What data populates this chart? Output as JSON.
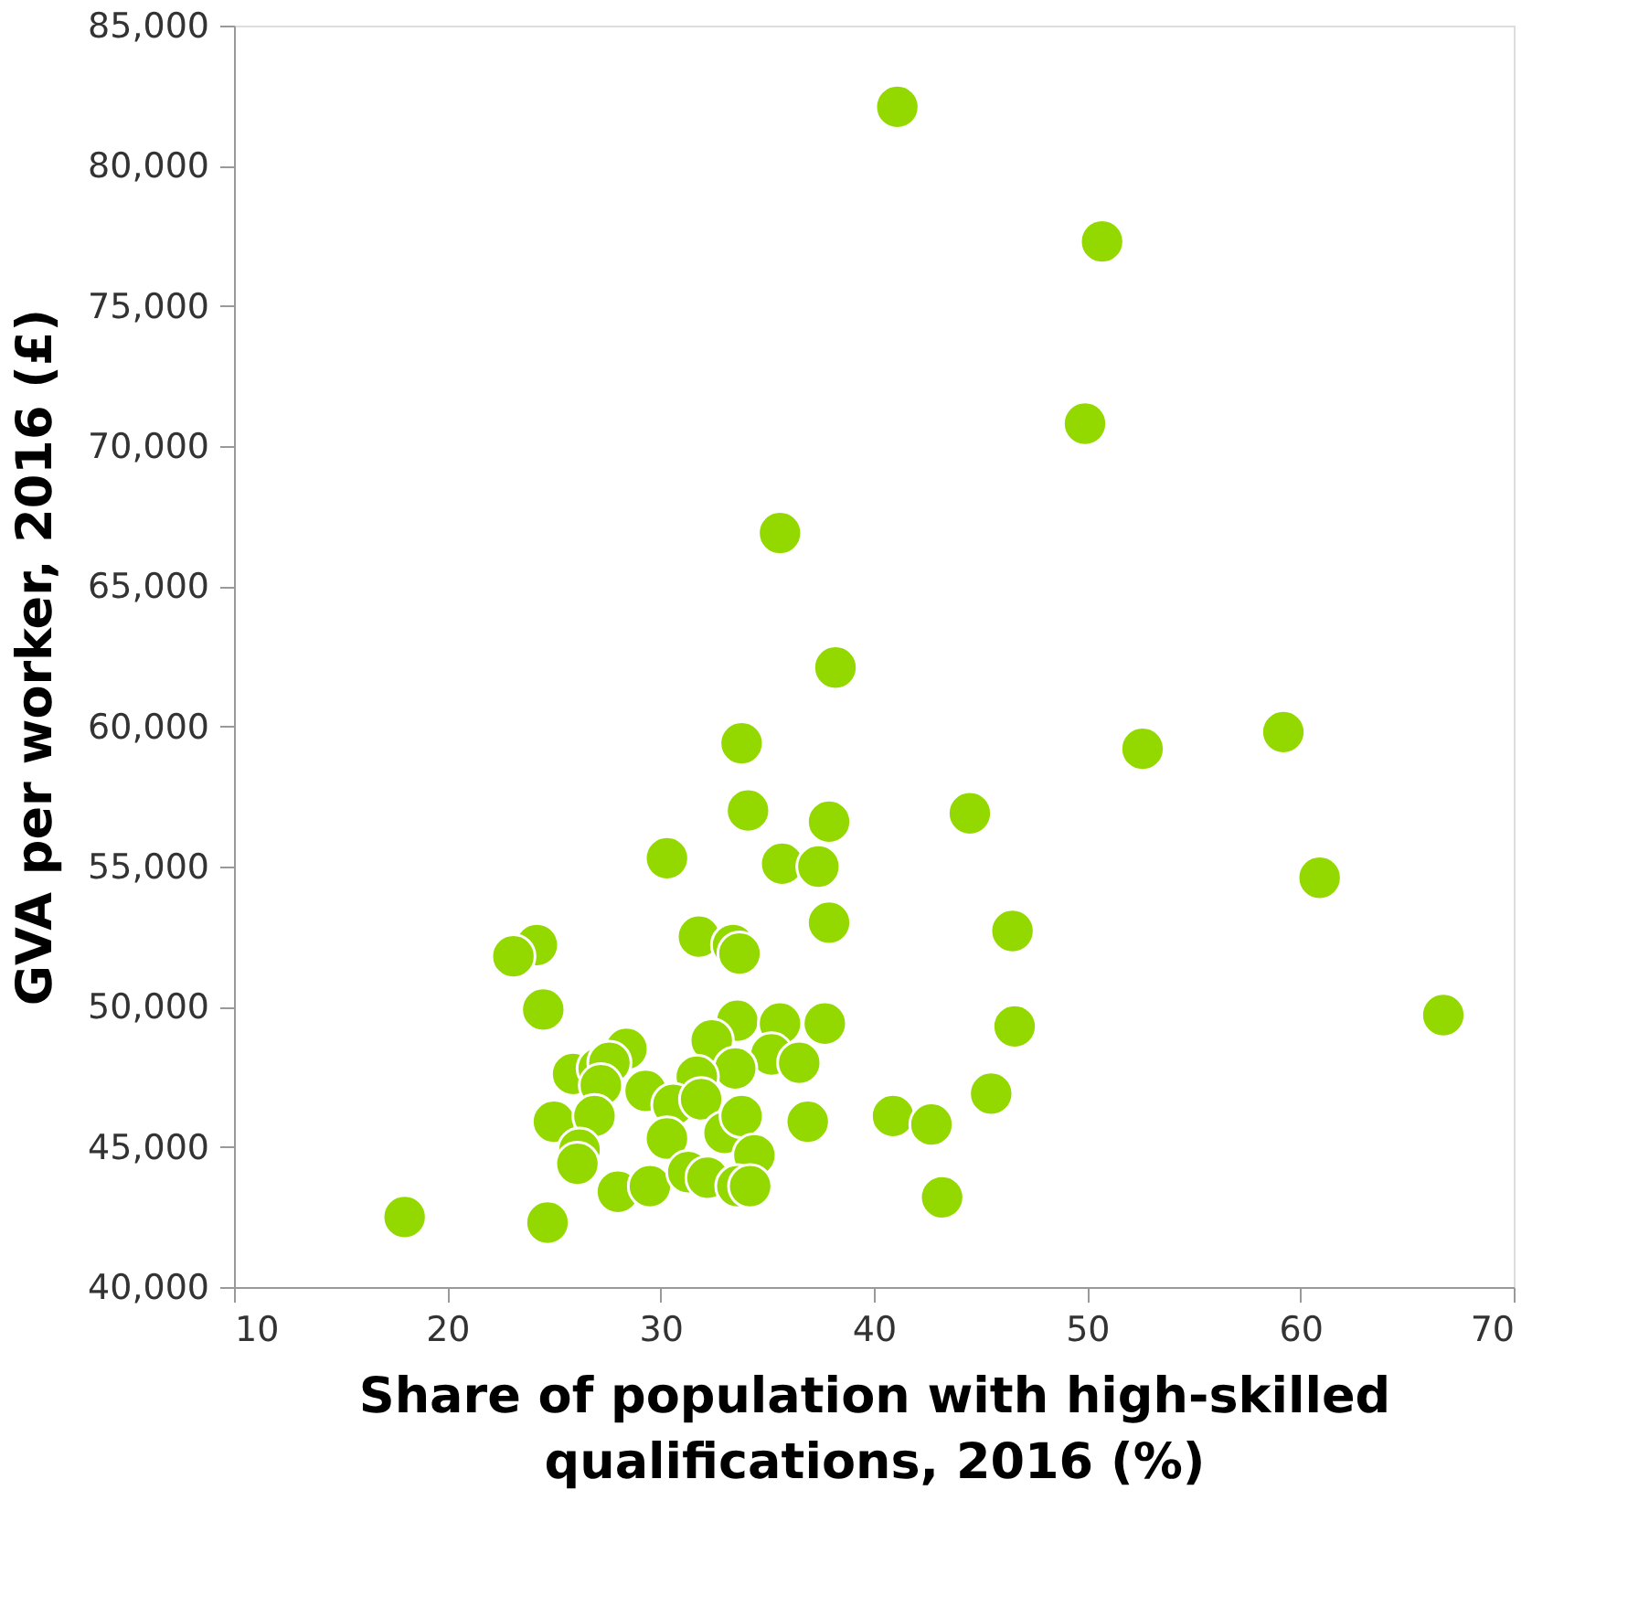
{
  "chart_data": {
    "type": "scatter",
    "xlabel": "Share of population with high-skilled qualifications, 2016 (%)",
    "ylabel": "GVA per worker, 2016 (£)",
    "xlim": [
      10,
      70
    ],
    "xticks": [
      10,
      20,
      30,
      40,
      50,
      60,
      70
    ],
    "ylim": [
      40000,
      85000
    ],
    "yticks": [
      {
        "value": 40000,
        "label": "40,000"
      },
      {
        "value": 45000,
        "label": "45,000"
      },
      {
        "value": 50000,
        "label": "50,000"
      },
      {
        "value": 55000,
        "label": "55,000"
      },
      {
        "value": 60000,
        "label": "60,000"
      },
      {
        "value": 65000,
        "label": "65,000"
      },
      {
        "value": 70000,
        "label": "70,000"
      },
      {
        "value": 75000,
        "label": "75,000"
      },
      {
        "value": 80000,
        "label": "80,000"
      },
      {
        "value": 85000,
        "label": "85,000"
      }
    ],
    "grid": false,
    "marker": "circle",
    "legend": false,
    "series": [
      {
        "color": "#93d900",
        "x": [
          41.1,
          50.7,
          49.9,
          35.6,
          38.2,
          33.8,
          59.2,
          52.6,
          34.1,
          37.9,
          44.5,
          30.3,
          35.7,
          37.4,
          60.9,
          24.2,
          23.1,
          31.8,
          33.4,
          33.7,
          37.9,
          46.5,
          24.5,
          66.7,
          46.6,
          28.4,
          25.9,
          27.1,
          27.6,
          27.2,
          29.3,
          33.6,
          32.4,
          35.6,
          37.7,
          35.2,
          36.5,
          33.5,
          31.7,
          30.6,
          31.9,
          25.0,
          26.9,
          36.9,
          30.3,
          33.0,
          33.8,
          34.4,
          26.2,
          26.1,
          28.0,
          29.5,
          31.3,
          32.2,
          33.6,
          34.2,
          18.0,
          24.7,
          40.9,
          42.7,
          43.2,
          45.5
        ],
        "values": [
          82100,
          77300,
          70800,
          66900,
          62100,
          59400,
          59800,
          59200,
          57000,
          56600,
          56900,
          55300,
          55100,
          55000,
          54600,
          52200,
          51800,
          52500,
          52200,
          51900,
          53000,
          52700,
          49900,
          49700,
          49300,
          48500,
          47600,
          47800,
          48000,
          47200,
          47000,
          49500,
          48800,
          49400,
          49400,
          48300,
          48000,
          47800,
          47500,
          46500,
          46700,
          45900,
          46100,
          45900,
          45300,
          45500,
          46100,
          44700,
          44900,
          44400,
          43400,
          43600,
          44100,
          43900,
          43600,
          43600,
          42500,
          42300,
          46100,
          45800,
          43200,
          46900
        ]
      }
    ]
  }
}
